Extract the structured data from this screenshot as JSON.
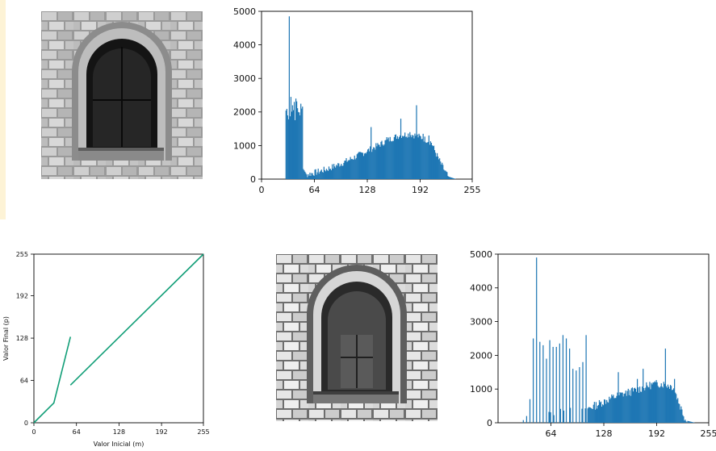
{
  "colors": {
    "histogram": "#1f77b4",
    "transform_line": "#119e77",
    "axis": "#000000",
    "strip": "#fdf3d6"
  },
  "images": [
    {
      "name": "original-window-photo",
      "icon": "stone-arched-window-photo",
      "tone": "original"
    },
    {
      "name": "enhanced-window-photo",
      "icon": "stone-arched-window-photo",
      "tone": "enhanced"
    }
  ],
  "chart_data": [
    {
      "type": "bar",
      "id": "original-histogram",
      "x_ticks": [
        0,
        64,
        128,
        192,
        255
      ],
      "y_ticks": [
        0,
        1000,
        2000,
        3000,
        4000,
        5000
      ],
      "xlim": [
        0,
        255
      ],
      "ylim": [
        0,
        5000
      ],
      "grid": false,
      "peaks": [
        {
          "x": 31,
          "y": 1900
        },
        {
          "x": 33,
          "y": 4850
        },
        {
          "x": 35,
          "y": 2450
        },
        {
          "x": 37,
          "y": 2200
        },
        {
          "x": 39,
          "y": 2300
        },
        {
          "x": 41,
          "y": 2400
        },
        {
          "x": 44,
          "y": 2000
        },
        {
          "x": 48,
          "y": 2100
        },
        {
          "x": 132,
          "y": 1550
        },
        {
          "x": 151,
          "y": 1250
        },
        {
          "x": 168,
          "y": 1800
        },
        {
          "x": 179,
          "y": 1400
        },
        {
          "x": 187,
          "y": 2200
        },
        {
          "x": 195,
          "y": 1350
        },
        {
          "x": 202,
          "y": 1300
        }
      ]
    },
    {
      "type": "line",
      "id": "transform-function",
      "xlabel": "Valor Inicial (m)",
      "ylabel": "Valor Final (p)",
      "x_ticks": [
        0,
        64,
        128,
        192,
        255
      ],
      "y_ticks": [
        0,
        64,
        128,
        192,
        255
      ],
      "xlim": [
        0,
        255
      ],
      "ylim": [
        0,
        255
      ],
      "grid": false,
      "series": [
        {
          "x": [
            0,
            30,
            55
          ],
          "y": [
            0,
            30,
            130
          ]
        },
        {
          "x": [
            55,
            255
          ],
          "y": [
            57,
            255
          ]
        }
      ]
    },
    {
      "type": "bar",
      "id": "enhanced-histogram",
      "x_ticks": [
        64,
        128,
        192,
        255
      ],
      "y_ticks": [
        0,
        1000,
        2000,
        3000,
        4000,
        5000
      ],
      "xlim": [
        0,
        255
      ],
      "ylim": [
        0,
        5000
      ],
      "grid": false,
      "spikes": [
        {
          "x": 30,
          "y": 80
        },
        {
          "x": 34,
          "y": 200
        },
        {
          "x": 38,
          "y": 700
        },
        {
          "x": 42,
          "y": 2500
        },
        {
          "x": 46,
          "y": 4900
        },
        {
          "x": 50,
          "y": 2400
        },
        {
          "x": 54,
          "y": 2300
        },
        {
          "x": 58,
          "y": 1900
        },
        {
          "x": 62,
          "y": 2450
        },
        {
          "x": 66,
          "y": 2250
        },
        {
          "x": 70,
          "y": 2250
        },
        {
          "x": 74,
          "y": 2350
        },
        {
          "x": 78,
          "y": 2600
        },
        {
          "x": 82,
          "y": 2500
        },
        {
          "x": 86,
          "y": 2200
        },
        {
          "x": 90,
          "y": 1600
        },
        {
          "x": 94,
          "y": 1550
        },
        {
          "x": 98,
          "y": 1650
        },
        {
          "x": 102,
          "y": 1800
        },
        {
          "x": 106,
          "y": 2600
        }
      ],
      "peaks": [
        {
          "x": 145,
          "y": 1500
        },
        {
          "x": 168,
          "y": 1300
        },
        {
          "x": 175,
          "y": 1600
        },
        {
          "x": 190,
          "y": 1200
        },
        {
          "x": 202,
          "y": 2200
        },
        {
          "x": 213,
          "y": 1300
        }
      ]
    }
  ]
}
